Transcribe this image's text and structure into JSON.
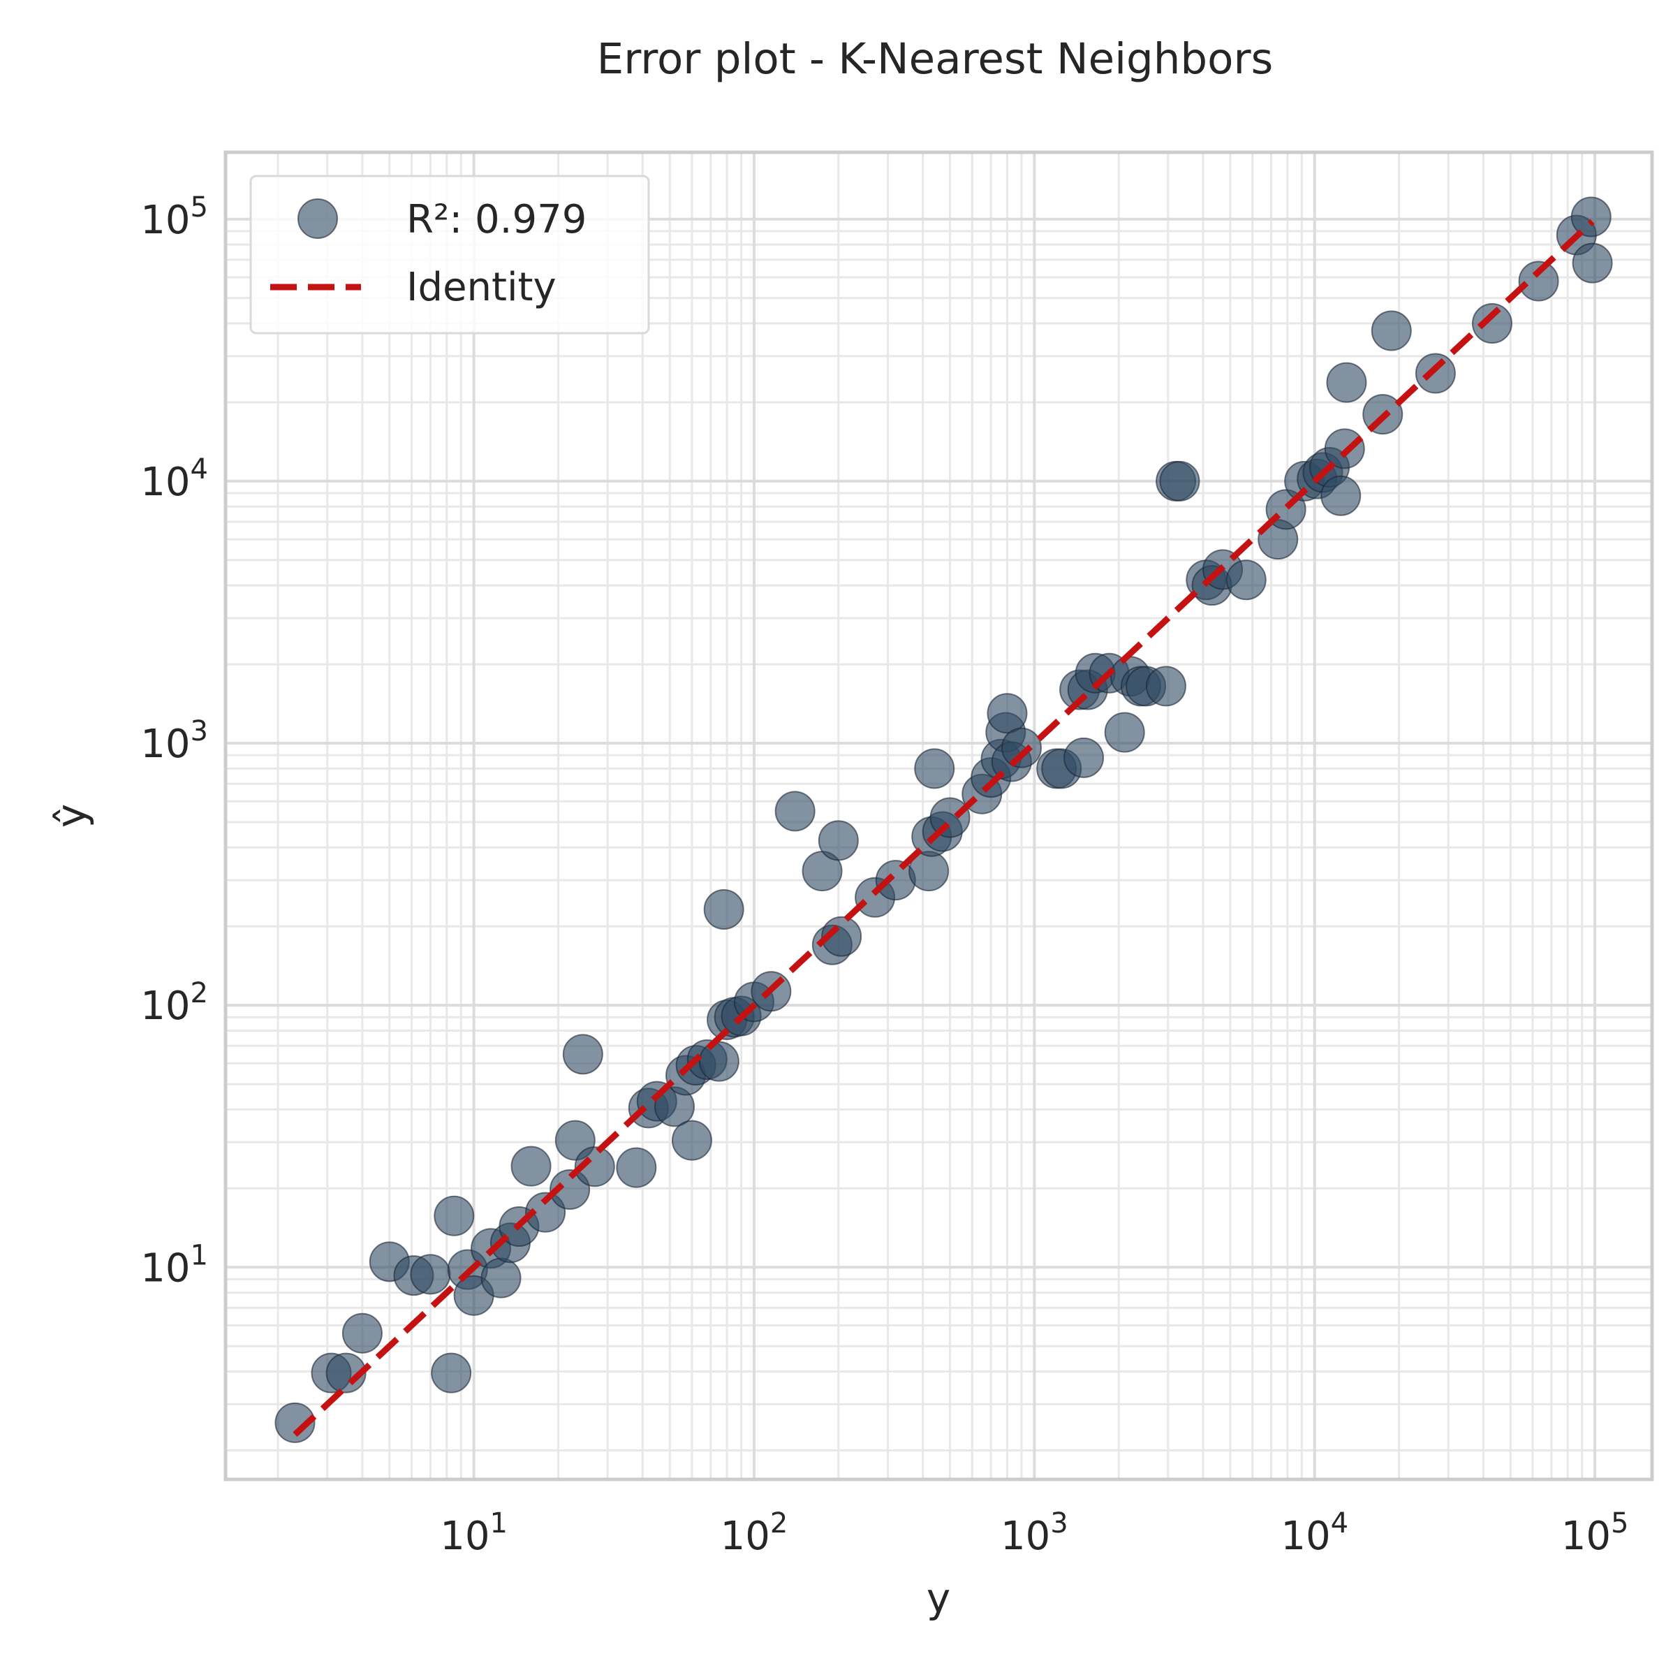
{
  "chart_data": {
    "type": "scatter",
    "title": "Error plot - K-Nearest Neighbors",
    "xlabel": "y",
    "ylabel": "ŷ",
    "x_scale": "log",
    "y_scale": "log",
    "xlim": [
      1.3,
      160000
    ],
    "ylim": [
      1.55,
      180000
    ],
    "grid": true,
    "x_ticks": [
      {
        "base": "10",
        "exp": "1",
        "value": 10
      },
      {
        "base": "10",
        "exp": "2",
        "value": 100
      },
      {
        "base": "10",
        "exp": "3",
        "value": 1000
      },
      {
        "base": "10",
        "exp": "4",
        "value": 10000
      },
      {
        "base": "10",
        "exp": "5",
        "value": 100000
      }
    ],
    "y_ticks": [
      {
        "base": "10",
        "exp": "1",
        "value": 10
      },
      {
        "base": "10",
        "exp": "2",
        "value": 100
      },
      {
        "base": "10",
        "exp": "3",
        "value": 1000
      },
      {
        "base": "10",
        "exp": "4",
        "value": 10000
      },
      {
        "base": "10",
        "exp": "5",
        "value": 100000
      }
    ],
    "legend": {
      "position": "top-left",
      "entries": [
        {
          "label": "R²: 0.979",
          "marker": "circle",
          "color": "#2f4a63"
        },
        {
          "label": "Identity",
          "marker": "dashed-line",
          "color": "#c41212"
        }
      ]
    },
    "series": [
      {
        "name": "R²: 0.979",
        "color": "#2f4a63",
        "points": [
          [
            2.3,
            2.55
          ],
          [
            3.1,
            3.95
          ],
          [
            3.5,
            3.95
          ],
          [
            4.0,
            5.6
          ],
          [
            5.0,
            10.5
          ],
          [
            6.1,
            9.3
          ],
          [
            7.0,
            9.4
          ],
          [
            8.3,
            3.95
          ],
          [
            8.5,
            15.7
          ],
          [
            9.5,
            9.8
          ],
          [
            10.0,
            7.8
          ],
          [
            11.5,
            11.8
          ],
          [
            12.5,
            9.1
          ],
          [
            13.5,
            12.4
          ],
          [
            14.5,
            14.3
          ],
          [
            16.0,
            24.3
          ],
          [
            18.0,
            16.2
          ],
          [
            22.0,
            19.8
          ],
          [
            23.0,
            30.5
          ],
          [
            24.5,
            65.0
          ],
          [
            27.0,
            24.2
          ],
          [
            38.0,
            24.0
          ],
          [
            42.0,
            40.5
          ],
          [
            45.0,
            43.0
          ],
          [
            52.0,
            41.0
          ],
          [
            57.0,
            54.0
          ],
          [
            60.0,
            30.5
          ],
          [
            62.0,
            59.0
          ],
          [
            68.0,
            62.0
          ],
          [
            75.0,
            61.0
          ],
          [
            78.0,
            232.0
          ],
          [
            80.0,
            88.0
          ],
          [
            85.0,
            90.0
          ],
          [
            90.0,
            91.0
          ],
          [
            100.0,
            103.0
          ],
          [
            115.0,
            113.0
          ],
          [
            140.0,
            550.0
          ],
          [
            175.0,
            325.0
          ],
          [
            190.0,
            170.0
          ],
          [
            200.0,
            425.0
          ],
          [
            205.0,
            183.0
          ],
          [
            270.0,
            258.0
          ],
          [
            320.0,
            300.0
          ],
          [
            420.0,
            325.0
          ],
          [
            430.0,
            440.0
          ],
          [
            440.0,
            800.0
          ],
          [
            470.0,
            460.0
          ],
          [
            500.0,
            520.0
          ],
          [
            650.0,
            640.0
          ],
          [
            700.0,
            740.0
          ],
          [
            760.0,
            870.0
          ],
          [
            790.0,
            1100.0
          ],
          [
            800.0,
            1300.0
          ],
          [
            830.0,
            850.0
          ],
          [
            900.0,
            960.0
          ],
          [
            1200.0,
            800.0
          ],
          [
            1250.0,
            800.0
          ],
          [
            1450.0,
            1600.0
          ],
          [
            1500.0,
            880.0
          ],
          [
            1550.0,
            1600.0
          ],
          [
            1650.0,
            1850.0
          ],
          [
            1850.0,
            1850.0
          ],
          [
            2100.0,
            1100.0
          ],
          [
            2200.0,
            1800.0
          ],
          [
            2400.0,
            1650.0
          ],
          [
            2500.0,
            1650.0
          ],
          [
            2950.0,
            1650.0
          ],
          [
            3200.0,
            10000.0
          ],
          [
            3300.0,
            10000.0
          ],
          [
            4100.0,
            4200.0
          ],
          [
            4300.0,
            4000.0
          ],
          [
            4700.0,
            4600.0
          ],
          [
            5700.0,
            4200.0
          ],
          [
            7400.0,
            6000.0
          ],
          [
            7900.0,
            7800.0
          ],
          [
            9200.0,
            10000.0
          ],
          [
            10200.0,
            10200.0
          ],
          [
            10700.0,
            10800.0
          ],
          [
            11300.0,
            11300.0
          ],
          [
            12400.0,
            8800.0
          ],
          [
            12800.0,
            13300.0
          ],
          [
            13000.0,
            23800.0
          ],
          [
            17500.0,
            18000.0
          ],
          [
            18800.0,
            37500.0
          ],
          [
            27000.0,
            25800.0
          ],
          [
            43000.0,
            40000.0
          ],
          [
            63000.0,
            58000.0
          ],
          [
            86000.0,
            87000.0
          ],
          [
            97000.0,
            102000.0
          ],
          [
            98000.0,
            68000.0
          ]
        ]
      }
    ],
    "reference_line": {
      "name": "Identity",
      "style": "dashed",
      "color": "#c41212",
      "x": [
        2.3,
        98000
      ],
      "y": [
        2.3,
        98000
      ]
    }
  }
}
